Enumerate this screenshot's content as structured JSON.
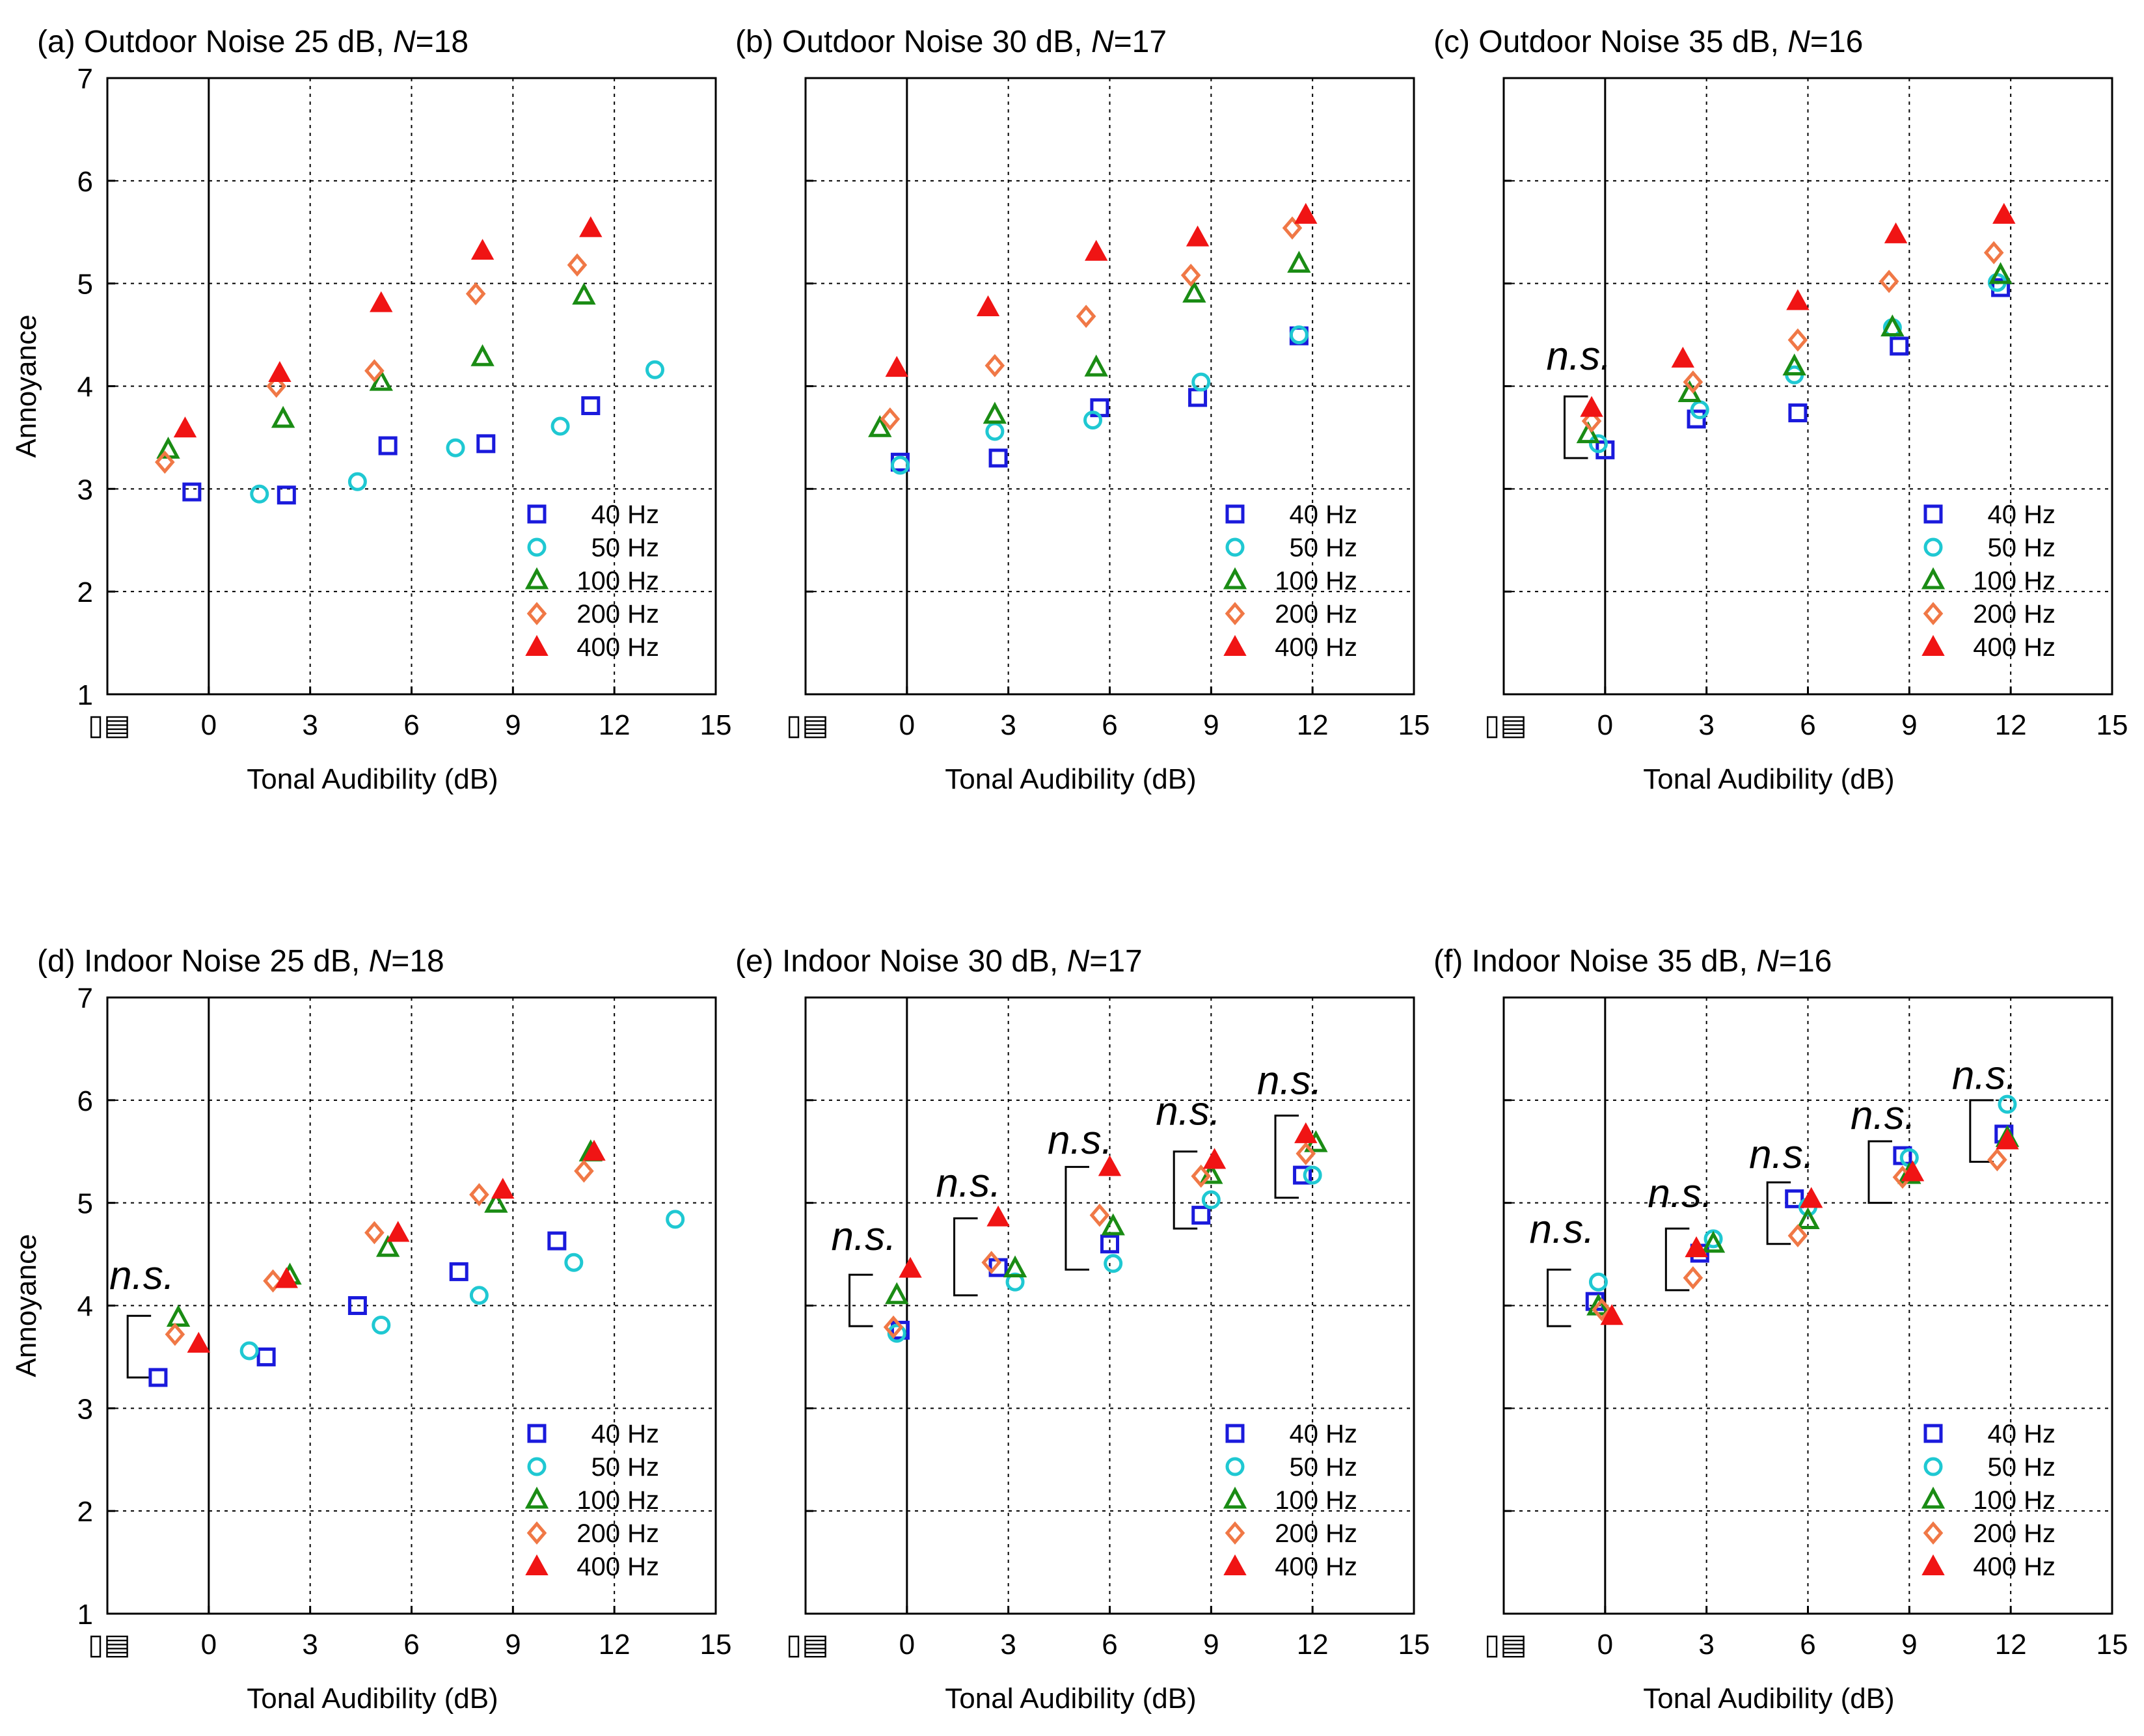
{
  "chart_data": [
    {
      "type": "scatter",
      "title_prefix": "(a) Outdoor Noise 25 dB, ",
      "title_n_symbol": "N",
      "title_n_value": "=18",
      "xlabel": "Tonal Audibility (dB)",
      "ylabel": "Annoyance",
      "xlim": [
        -3,
        15
      ],
      "ylim": [
        1,
        7
      ],
      "xticks": [
        0,
        3,
        6,
        9,
        12,
        15
      ],
      "yticks": [
        1,
        2,
        3,
        4,
        5,
        6,
        7
      ],
      "x_negative_tick_label": "▯▤",
      "grid": true,
      "legend_position": "bottom-right",
      "series": [
        {
          "name": "40 Hz",
          "points": [
            [
              -0.5,
              2.97
            ],
            [
              2.3,
              2.94
            ],
            [
              5.3,
              3.42
            ],
            [
              8.2,
              3.44
            ],
            [
              11.3,
              3.81
            ]
          ]
        },
        {
          "name": "50 Hz",
          "points": [
            [
              1.5,
              2.95
            ],
            [
              4.4,
              3.07
            ],
            [
              7.3,
              3.4
            ],
            [
              10.4,
              3.61
            ],
            [
              13.2,
              4.16
            ]
          ]
        },
        {
          "name": "100 Hz",
          "points": [
            [
              -1.2,
              3.38
            ],
            [
              2.2,
              3.68
            ],
            [
              5.1,
              4.04
            ],
            [
              8.1,
              4.28
            ],
            [
              11.1,
              4.88
            ]
          ]
        },
        {
          "name": "200 Hz",
          "points": [
            [
              -1.3,
              3.26
            ],
            [
              2.0,
              4.0
            ],
            [
              4.9,
              4.15
            ],
            [
              7.9,
              4.9
            ],
            [
              10.9,
              5.18
            ]
          ]
        },
        {
          "name": "400 Hz",
          "points": [
            [
              -0.7,
              3.59
            ],
            [
              2.1,
              4.13
            ],
            [
              5.1,
              4.81
            ],
            [
              8.1,
              5.32
            ],
            [
              11.3,
              5.54
            ]
          ]
        }
      ],
      "ns_annotations": []
    },
    {
      "type": "scatter",
      "title_prefix": "(b) Outdoor Noise 30 dB, ",
      "title_n_symbol": "N",
      "title_n_value": "=17",
      "xlabel": "Tonal Audibility (dB)",
      "ylabel": "",
      "xlim": [
        -3,
        15
      ],
      "ylim": [
        1,
        7
      ],
      "xticks": [
        0,
        3,
        6,
        9,
        12,
        15
      ],
      "yticks": [
        1,
        2,
        3,
        4,
        5,
        6,
        7
      ],
      "x_negative_tick_label": "▯▤",
      "grid": true,
      "legend_position": "bottom-right",
      "series": [
        {
          "name": "40 Hz",
          "points": [
            [
              -0.2,
              3.26
            ],
            [
              2.7,
              3.3
            ],
            [
              5.7,
              3.79
            ],
            [
              8.6,
              3.89
            ],
            [
              11.6,
              4.49
            ]
          ]
        },
        {
          "name": "50 Hz",
          "points": [
            [
              -0.2,
              3.23
            ],
            [
              2.6,
              3.56
            ],
            [
              5.5,
              3.67
            ],
            [
              8.7,
              4.04
            ],
            [
              11.6,
              4.5
            ]
          ]
        },
        {
          "name": "100 Hz",
          "points": [
            [
              -0.8,
              3.59
            ],
            [
              2.6,
              3.72
            ],
            [
              5.6,
              4.18
            ],
            [
              8.5,
              4.9
            ],
            [
              11.6,
              5.19
            ]
          ]
        },
        {
          "name": "200 Hz",
          "points": [
            [
              -0.5,
              3.68
            ],
            [
              2.6,
              4.2
            ],
            [
              5.3,
              4.68
            ],
            [
              8.4,
              5.08
            ],
            [
              11.4,
              5.54
            ]
          ]
        },
        {
          "name": "400 Hz",
          "points": [
            [
              -0.3,
              4.18
            ],
            [
              2.4,
              4.77
            ],
            [
              5.6,
              5.31
            ],
            [
              8.6,
              5.45
            ],
            [
              11.8,
              5.67
            ]
          ]
        }
      ],
      "ns_annotations": []
    },
    {
      "type": "scatter",
      "title_prefix": "(c) Outdoor Noise 35 dB, ",
      "title_n_symbol": "N",
      "title_n_value": "=16",
      "xlabel": "Tonal Audibility (dB)",
      "ylabel": "",
      "xlim": [
        -3,
        15
      ],
      "ylim": [
        1,
        7
      ],
      "xticks": [
        0,
        3,
        6,
        9,
        12,
        15
      ],
      "yticks": [
        1,
        2,
        3,
        4,
        5,
        6,
        7
      ],
      "x_negative_tick_label": "▯▤",
      "grid": true,
      "legend_position": "bottom-right",
      "series": [
        {
          "name": "40 Hz",
          "points": [
            [
              0.0,
              3.38
            ],
            [
              2.7,
              3.68
            ],
            [
              5.7,
              3.74
            ],
            [
              8.7,
              4.39
            ],
            [
              11.7,
              4.96
            ]
          ]
        },
        {
          "name": "50 Hz",
          "points": [
            [
              -0.2,
              3.44
            ],
            [
              2.8,
              3.77
            ],
            [
              5.6,
              4.11
            ],
            [
              8.5,
              4.57
            ],
            [
              11.6,
              5.01
            ]
          ]
        },
        {
          "name": "100 Hz",
          "points": [
            [
              -0.5,
              3.53
            ],
            [
              2.5,
              3.93
            ],
            [
              5.6,
              4.19
            ],
            [
              8.5,
              4.57
            ],
            [
              11.7,
              5.08
            ]
          ]
        },
        {
          "name": "200 Hz",
          "points": [
            [
              -0.4,
              3.66
            ],
            [
              2.6,
              4.04
            ],
            [
              5.7,
              4.45
            ],
            [
              8.4,
              5.02
            ],
            [
              11.5,
              5.3
            ]
          ]
        },
        {
          "name": "400 Hz",
          "points": [
            [
              -0.4,
              3.79
            ],
            [
              2.3,
              4.27
            ],
            [
              5.7,
              4.83
            ],
            [
              8.6,
              5.48
            ],
            [
              11.8,
              5.67
            ]
          ]
        }
      ],
      "ns_annotations": [
        {
          "label": "n.s.",
          "x": -1.2,
          "y_low": 3.3,
          "y_high": 3.9,
          "label_y": 4.3
        }
      ]
    },
    {
      "type": "scatter",
      "title_prefix": "(d) Indoor Noise 25 dB, ",
      "title_n_symbol": "N",
      "title_n_value": "=18",
      "xlabel": "Tonal Audibility (dB)",
      "ylabel": "Annoyance",
      "xlim": [
        -3,
        15
      ],
      "ylim": [
        1,
        7
      ],
      "xticks": [
        0,
        3,
        6,
        9,
        12,
        15
      ],
      "yticks": [
        1,
        2,
        3,
        4,
        5,
        6,
        7
      ],
      "x_negative_tick_label": "▯▤",
      "grid": true,
      "legend_position": "bottom-right",
      "series": [
        {
          "name": "40 Hz",
          "points": [
            [
              -1.5,
              3.3
            ],
            [
              1.7,
              3.5
            ],
            [
              4.4,
              4.0
            ],
            [
              7.4,
              4.33
            ],
            [
              10.3,
              4.63
            ]
          ]
        },
        {
          "name": "50 Hz",
          "points": [
            [
              1.2,
              3.56
            ],
            [
              5.1,
              3.81
            ],
            [
              8.0,
              4.1
            ],
            [
              10.8,
              4.42
            ],
            [
              13.8,
              4.84
            ]
          ]
        },
        {
          "name": "100 Hz",
          "points": [
            [
              -0.9,
              3.88
            ],
            [
              2.4,
              4.29
            ],
            [
              5.3,
              4.56
            ],
            [
              8.5,
              4.99
            ],
            [
              11.3,
              5.49
            ]
          ]
        },
        {
          "name": "200 Hz",
          "points": [
            [
              -1.0,
              3.72
            ],
            [
              1.9,
              4.24
            ],
            [
              4.9,
              4.71
            ],
            [
              8.0,
              5.08
            ],
            [
              11.1,
              5.31
            ]
          ]
        },
        {
          "name": "400 Hz",
          "points": [
            [
              -0.3,
              3.63
            ],
            [
              2.3,
              4.26
            ],
            [
              5.6,
              4.71
            ],
            [
              8.7,
              5.13
            ],
            [
              11.4,
              5.5
            ]
          ]
        }
      ],
      "ns_annotations": [
        {
          "label": "n.s.",
          "x": -2.4,
          "y_low": 3.3,
          "y_high": 3.9,
          "label_y": 4.3
        }
      ]
    },
    {
      "type": "scatter",
      "title_prefix": "(e) Indoor Noise 30 dB, ",
      "title_n_symbol": "N",
      "title_n_value": "=17",
      "xlabel": "Tonal Audibility (dB)",
      "ylabel": "",
      "xlim": [
        -3,
        15
      ],
      "ylim": [
        1,
        7
      ],
      "xticks": [
        0,
        3,
        6,
        9,
        12,
        15
      ],
      "yticks": [
        1,
        2,
        3,
        4,
        5,
        6,
        7
      ],
      "x_negative_tick_label": "▯▤",
      "grid": true,
      "legend_position": "bottom-right",
      "series": [
        {
          "name": "40 Hz",
          "points": [
            [
              -0.2,
              3.76
            ],
            [
              2.7,
              4.37
            ],
            [
              6.0,
              4.6
            ],
            [
              8.7,
              4.88
            ],
            [
              11.7,
              5.27
            ]
          ]
        },
        {
          "name": "50 Hz",
          "points": [
            [
              -0.3,
              3.73
            ],
            [
              3.2,
              4.23
            ],
            [
              6.1,
              4.41
            ],
            [
              9.0,
              5.03
            ],
            [
              12.0,
              5.27
            ]
          ]
        },
        {
          "name": "100 Hz",
          "points": [
            [
              -0.3,
              4.1
            ],
            [
              3.2,
              4.36
            ],
            [
              6.1,
              4.77
            ],
            [
              9.0,
              5.27
            ],
            [
              12.1,
              5.58
            ]
          ]
        },
        {
          "name": "200 Hz",
          "points": [
            [
              -0.4,
              3.79
            ],
            [
              2.5,
              4.42
            ],
            [
              5.7,
              4.88
            ],
            [
              8.7,
              5.26
            ],
            [
              11.8,
              5.48
            ]
          ]
        },
        {
          "name": "400 Hz",
          "points": [
            [
              0.1,
              4.36
            ],
            [
              2.7,
              4.86
            ],
            [
              6.0,
              5.35
            ],
            [
              9.1,
              5.42
            ],
            [
              11.8,
              5.67
            ]
          ]
        }
      ],
      "ns_annotations": [
        {
          "label": "n.s.",
          "x": -1.7,
          "y_low": 3.8,
          "y_high": 4.3,
          "label_y": 4.68
        },
        {
          "label": "n.s.",
          "x": 1.4,
          "y_low": 4.1,
          "y_high": 4.85,
          "label_y": 5.2
        },
        {
          "label": "n.s.",
          "x": 4.7,
          "y_low": 4.35,
          "y_high": 5.35,
          "label_y": 5.62
        },
        {
          "label": "n.s.",
          "x": 7.9,
          "y_low": 4.75,
          "y_high": 5.5,
          "label_y": 5.9
        },
        {
          "label": "n.s.",
          "x": 10.9,
          "y_low": 5.05,
          "y_high": 5.85,
          "label_y": 6.2
        }
      ]
    },
    {
      "type": "scatter",
      "title_prefix": "(f) Indoor Noise 35 dB, ",
      "title_n_symbol": "N",
      "title_n_value": "=16",
      "xlabel": "Tonal Audibility (dB)",
      "ylabel": "",
      "xlim": [
        -3,
        15
      ],
      "ylim": [
        1,
        7
      ],
      "xticks": [
        0,
        3,
        6,
        9,
        12,
        15
      ],
      "yticks": [
        1,
        2,
        3,
        4,
        5,
        6,
        7
      ],
      "x_negative_tick_label": "▯▤",
      "grid": true,
      "legend_position": "bottom-right",
      "series": [
        {
          "name": "40 Hz",
          "points": [
            [
              -0.3,
              4.04
            ],
            [
              2.8,
              4.51
            ],
            [
              5.6,
              5.04
            ],
            [
              8.8,
              5.46
            ],
            [
              11.8,
              5.67
            ]
          ]
        },
        {
          "name": "50 Hz",
          "points": [
            [
              -0.2,
              4.23
            ],
            [
              3.2,
              4.65
            ],
            [
              6.0,
              4.96
            ],
            [
              9.0,
              5.44
            ],
            [
              11.9,
              5.96
            ]
          ]
        },
        {
          "name": "100 Hz",
          "points": [
            [
              -0.2,
              3.99
            ],
            [
              3.2,
              4.6
            ],
            [
              6.0,
              4.83
            ],
            [
              9.0,
              5.27
            ],
            [
              11.9,
              5.63
            ]
          ]
        },
        {
          "name": "200 Hz",
          "points": [
            [
              -0.1,
              3.96
            ],
            [
              2.6,
              4.27
            ],
            [
              5.7,
              4.68
            ],
            [
              8.8,
              5.25
            ],
            [
              11.6,
              5.42
            ]
          ]
        },
        {
          "name": "400 Hz",
          "points": [
            [
              0.2,
              3.9
            ],
            [
              2.7,
              4.56
            ],
            [
              6.1,
              5.04
            ],
            [
              9.1,
              5.3
            ],
            [
              11.9,
              5.61
            ]
          ]
        }
      ],
      "ns_annotations": [
        {
          "label": "n.s.",
          "x": -1.7,
          "y_low": 3.8,
          "y_high": 4.35,
          "label_y": 4.75
        },
        {
          "label": "n.s.",
          "x": 1.8,
          "y_low": 4.15,
          "y_high": 4.75,
          "label_y": 5.1
        },
        {
          "label": "n.s.",
          "x": 4.8,
          "y_low": 4.6,
          "y_high": 5.2,
          "label_y": 5.48
        },
        {
          "label": "n.s.",
          "x": 7.8,
          "y_low": 5.0,
          "y_high": 5.6,
          "label_y": 5.86
        },
        {
          "label": "n.s.",
          "x": 10.8,
          "y_low": 5.4,
          "y_high": 6.0,
          "label_y": 6.25
        }
      ]
    }
  ],
  "series_styles": [
    {
      "name": "40 Hz",
      "marker": "open-square",
      "color": "#1a1adc"
    },
    {
      "name": "50 Hz",
      "marker": "open-circle",
      "color": "#1fc8d2"
    },
    {
      "name": "100 Hz",
      "marker": "open-triangle",
      "color": "#1a8c14"
    },
    {
      "name": "200 Hz",
      "marker": "open-diamond",
      "color": "#f07846"
    },
    {
      "name": "400 Hz",
      "marker": "filled-triangle",
      "color": "#f01414"
    }
  ]
}
